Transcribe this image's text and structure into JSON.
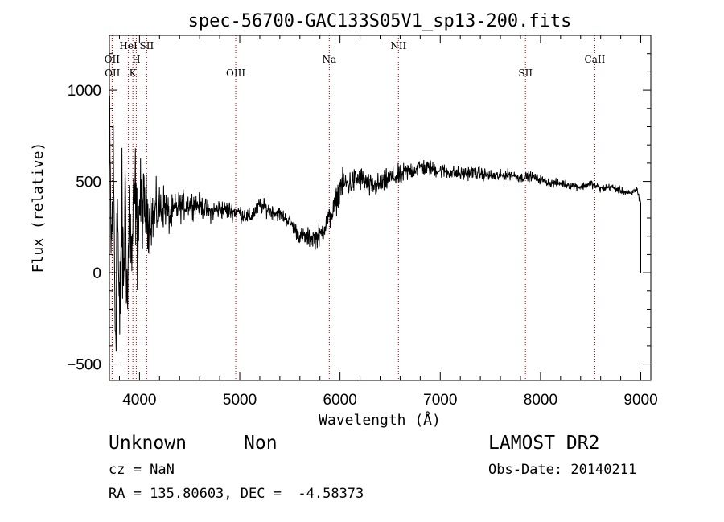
{
  "chart_data": {
    "type": "line",
    "title": "spec-56700-GAC133S05V1_sp13-200.fits",
    "xlabel": "Wavelength (Å)",
    "ylabel": "Flux (relative)",
    "xlim": [
      3700,
      9100
    ],
    "ylim": [
      -590,
      1300
    ],
    "x_ticks": [
      4000,
      5000,
      6000,
      7000,
      8000,
      9000
    ],
    "y_ticks": [
      -500,
      0,
      500,
      1000
    ],
    "grid": false,
    "series": [
      {
        "x": [
          3700,
          3720,
          3740,
          3760,
          3780,
          3800,
          3820,
          3840,
          3860,
          3880,
          3900,
          3920,
          3940,
          3960,
          3980,
          4000,
          4050,
          4100,
          4150,
          4200,
          4250,
          4300,
          4350,
          4400,
          4500,
          4600,
          4700,
          4800,
          4900,
          5000,
          5100,
          5200,
          5300,
          5400,
          5500,
          5600,
          5700,
          5800,
          5850,
          5900,
          5950,
          6000,
          6100,
          6200,
          6300,
          6400,
          6500,
          6600,
          6700,
          6800,
          6900,
          7000,
          7100,
          7200,
          7300,
          7400,
          7500,
          7600,
          7700,
          7800,
          7900,
          8000,
          8100,
          8200,
          8300,
          8400,
          8500,
          8600,
          8700,
          8800,
          8900,
          8960,
          9000
        ],
        "y": [
          700,
          100,
          550,
          -300,
          400,
          -400,
          350,
          -50,
          450,
          -200,
          380,
          50,
          300,
          450,
          150,
          380,
          350,
          300,
          320,
          350,
          370,
          300,
          340,
          360,
          380,
          370,
          330,
          350,
          340,
          330,
          300,
          370,
          340,
          320,
          280,
          200,
          190,
          200,
          260,
          300,
          360,
          480,
          490,
          520,
          470,
          480,
          520,
          530,
          560,
          580,
          570,
          560,
          550,
          540,
          550,
          545,
          530,
          530,
          540,
          520,
          530,
          510,
          490,
          490,
          480,
          470,
          490,
          460,
          470,
          450,
          430,
          460,
          380
        ],
        "noise_amplitude": [
          [
            3700,
            320
          ],
          [
            3800,
            300
          ],
          [
            3900,
            240
          ],
          [
            4000,
            180
          ],
          [
            4100,
            130
          ],
          [
            4300,
            70
          ],
          [
            4600,
            45
          ],
          [
            5000,
            35
          ],
          [
            5500,
            28
          ],
          [
            5800,
            45
          ],
          [
            6000,
            55
          ],
          [
            6500,
            45
          ],
          [
            7000,
            30
          ],
          [
            8000,
            18
          ],
          [
            9000,
            14
          ]
        ]
      }
    ],
    "spectral_lines": [
      {
        "name": "OII",
        "x": 3727,
        "row": 1
      },
      {
        "name": "OII",
        "x": 3730,
        "row": 2
      },
      {
        "name": "HeI",
        "x": 3889,
        "row": 0
      },
      {
        "name": "H",
        "x": 3968,
        "row": 1
      },
      {
        "name": "K",
        "x": 3934,
        "row": 2
      },
      {
        "name": "SII",
        "x": 4072,
        "row": 0
      },
      {
        "name": "OIII",
        "x": 4960,
        "row": 2
      },
      {
        "name": "Na",
        "x": 5893,
        "row": 1
      },
      {
        "name": "NII",
        "x": 6583,
        "row": 0
      },
      {
        "name": "SII",
        "x": 7850,
        "row": 2
      },
      {
        "name": "CaII",
        "x": 8542,
        "row": 1
      }
    ],
    "line_color": "#000000",
    "marker_line_color": "#cc0000"
  },
  "info": {
    "object_class": "Unknown",
    "subclass": "Non",
    "survey": "LAMOST DR2",
    "cz": "cz = NaN",
    "obs_date": "Obs-Date: 20140211",
    "radec": "RA = 135.80603, DEC =  -4.58373"
  }
}
